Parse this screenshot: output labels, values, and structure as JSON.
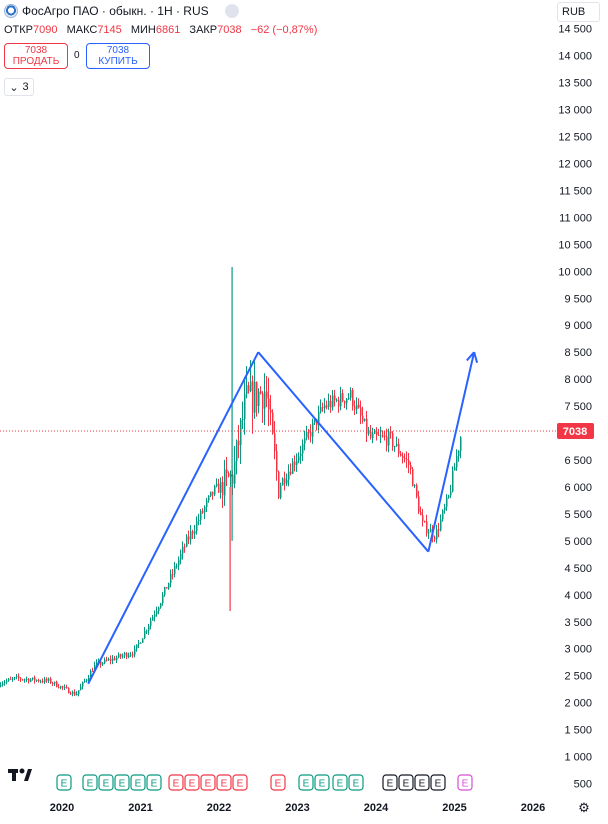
{
  "header": {
    "title": "ФосАгро ПАО · обыкн. · 1Н · RUS",
    "ohlc": [
      {
        "key": "ОТКР",
        "value": "7090"
      },
      {
        "key": "МАКС",
        "value": "7145"
      },
      {
        "key": "МИН",
        "value": "6861"
      },
      {
        "key": "ЗАКР",
        "value": "7038"
      }
    ],
    "change": "−62 (−0,87%)",
    "sell_price": "7038",
    "sell_label": "ПРОДАТЬ",
    "buy_price": "7038",
    "buy_label": "КУПИТЬ",
    "spread": "0",
    "indicators_count": "3",
    "currency": "RUB"
  },
  "chart_data": {
    "type": "candlestick",
    "x_ticks": [
      "2020",
      "2021",
      "2022",
      "2023",
      "2024",
      "2025",
      "2026"
    ],
    "y_ticks": [
      "500",
      "1 000",
      "1 500",
      "2 000",
      "2 500",
      "3 000",
      "3 500",
      "4 000",
      "4 500",
      "5 000",
      "5 500",
      "6 000",
      "6 500",
      "7 000",
      "7 500",
      "8 000",
      "8 500",
      "9 000",
      "9 500",
      "10 000",
      "10 500",
      "11 000",
      "11 500",
      "12 000",
      "12 500",
      "13 000",
      "13 500",
      "14 000",
      "14 500"
    ],
    "ylim": [
      500,
      14500
    ],
    "last_price": 7038,
    "last_price_label": "7038",
    "up_color": "#089981",
    "down_color": "#f23645",
    "drawing_color": "#2962ff",
    "trend_lines": [
      {
        "from": {
          "date": "2020-05",
          "price": 2350
        },
        "to": {
          "date": "2022-07",
          "price": 8500
        }
      },
      {
        "from": {
          "date": "2022-07",
          "price": 8500
        },
        "to": {
          "date": "2024-09",
          "price": 4800
        }
      },
      {
        "from": {
          "date": "2024-09",
          "price": 4800
        },
        "to": {
          "date": "2025-04",
          "price": 8500
        }
      }
    ],
    "series_path": [
      {
        "date": "2019-01",
        "price": 2300
      },
      {
        "date": "2019-06",
        "price": 2450
      },
      {
        "date": "2019-11",
        "price": 2400
      },
      {
        "date": "2020-03",
        "price": 2150
      },
      {
        "date": "2020-06",
        "price": 2700
      },
      {
        "date": "2020-12",
        "price": 2950
      },
      {
        "date": "2021-04",
        "price": 3900
      },
      {
        "date": "2021-08",
        "price": 5000
      },
      {
        "date": "2021-12",
        "price": 5900
      },
      {
        "date": "2022-03",
        "price": 6200
      },
      {
        "date": "2022-05",
        "price": 7600
      },
      {
        "date": "2022-08",
        "price": 7800
      },
      {
        "date": "2022-10",
        "price": 6000
      },
      {
        "date": "2023-01",
        "price": 6600
      },
      {
        "date": "2023-05",
        "price": 7500
      },
      {
        "date": "2023-09",
        "price": 7700
      },
      {
        "date": "2023-12",
        "price": 6900
      },
      {
        "date": "2024-03",
        "price": 6900
      },
      {
        "date": "2024-06",
        "price": 6400
      },
      {
        "date": "2024-08",
        "price": 5300
      },
      {
        "date": "2024-10",
        "price": 5100
      },
      {
        "date": "2024-12",
        "price": 5800
      },
      {
        "date": "2025-02",
        "price": 7038
      }
    ],
    "events": [
      "E",
      "E",
      "E",
      "E",
      "E",
      "E",
      "E",
      "E",
      "E",
      "E",
      "E",
      "E",
      "E",
      "E",
      "E",
      "E",
      "E",
      "E",
      "E",
      "E",
      "E"
    ]
  }
}
